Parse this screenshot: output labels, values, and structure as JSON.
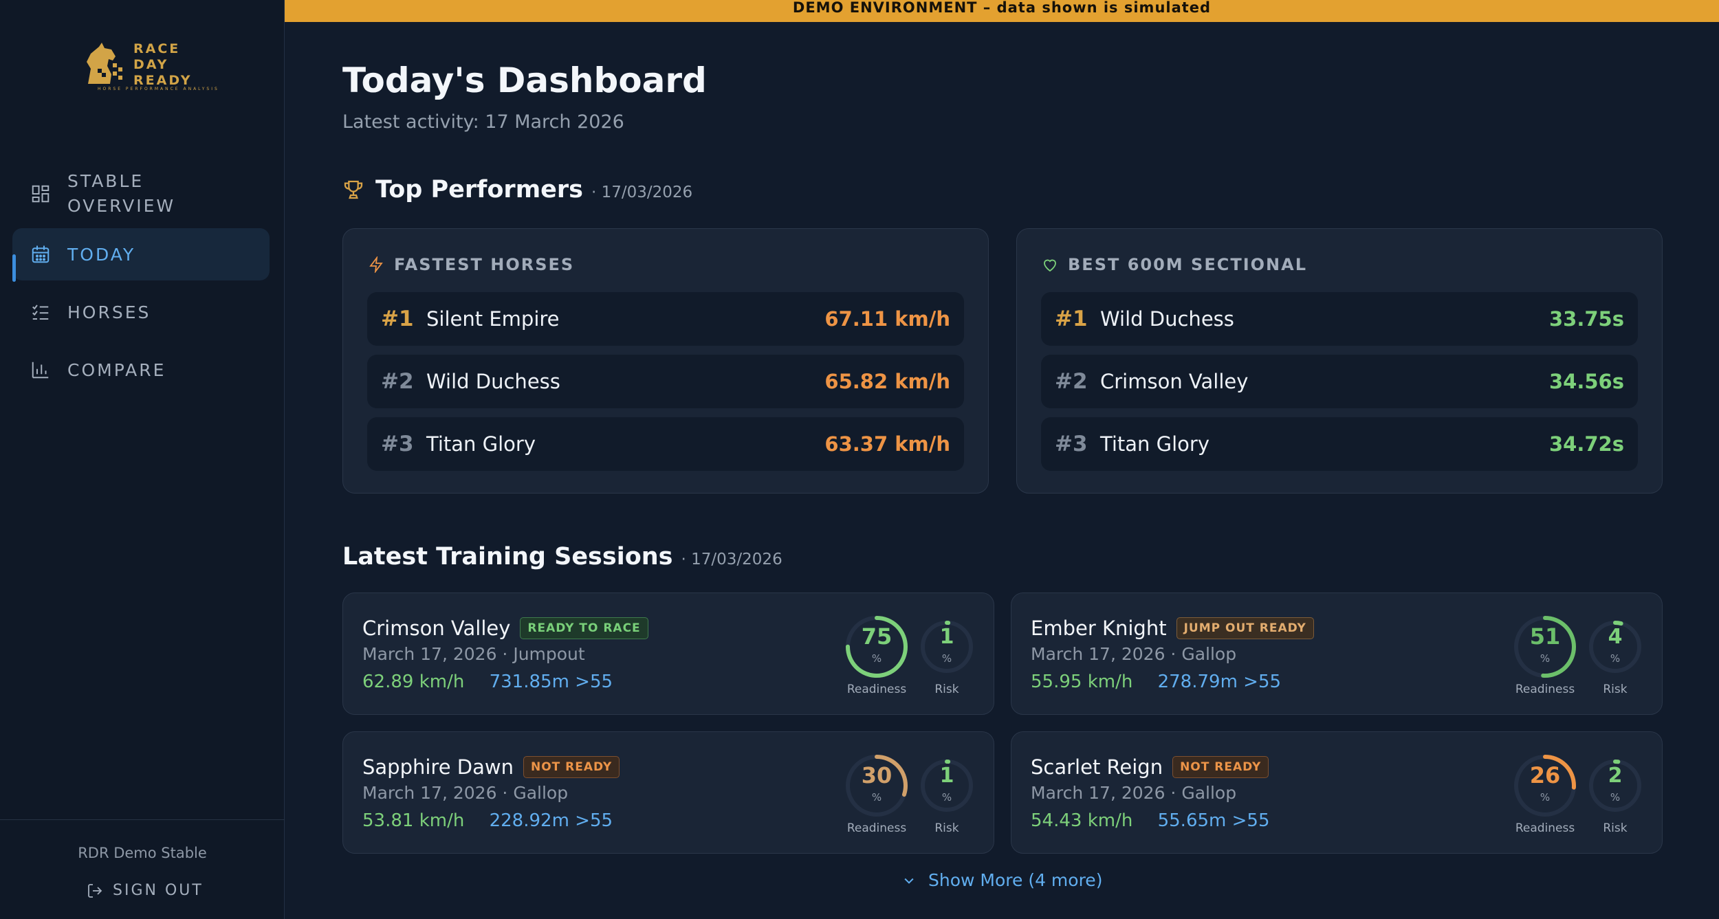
{
  "banner": "DEMO ENVIRONMENT – data shown is simulated",
  "logo": {
    "line1": "RACE",
    "line2": "DAY",
    "line3": "READY",
    "tagline": "HORSE  PERFORMANCE  ANALYSIS"
  },
  "nav": {
    "stable_overview": "STABLE OVERVIEW",
    "today": "TODAY",
    "horses": "HORSES",
    "compare": "COMPARE"
  },
  "footer": {
    "stable_name": "RDR Demo Stable",
    "sign_out": "SIGN OUT"
  },
  "header": {
    "title": "Today's Dashboard",
    "subtitle": "Latest activity: 17 March 2026"
  },
  "top_performers": {
    "title": "Top Performers",
    "date": "· 17/03/2026",
    "fastest": {
      "heading": "FASTEST HORSES",
      "rows": [
        {
          "rank": "#1",
          "name": "Silent Empire",
          "value": "67.11 km/h"
        },
        {
          "rank": "#2",
          "name": "Wild Duchess",
          "value": "65.82 km/h"
        },
        {
          "rank": "#3",
          "name": "Titan Glory",
          "value": "63.37 km/h"
        }
      ]
    },
    "sectional": {
      "heading": "BEST 600M SECTIONAL",
      "rows": [
        {
          "rank": "#1",
          "name": "Wild Duchess",
          "value": "33.75s"
        },
        {
          "rank": "#2",
          "name": "Crimson Valley",
          "value": "34.56s"
        },
        {
          "rank": "#3",
          "name": "Titan Glory",
          "value": "34.72s"
        }
      ]
    }
  },
  "sessions": {
    "title": "Latest Training Sessions",
    "date": "· 17/03/2026",
    "readiness_label": "Readiness",
    "risk_label": "Risk",
    "pct": "%",
    "items": [
      {
        "name": "Crimson Valley",
        "badge": "READY TO RACE",
        "meta": "March 17, 2026 · Jumpout",
        "speed": "62.89 km/h",
        "distance": "731.85m >55",
        "readiness": "75",
        "risk": "1"
      },
      {
        "name": "Ember Knight",
        "badge": "JUMP OUT READY",
        "meta": "March 17, 2026 · Gallop",
        "speed": "55.95 km/h",
        "distance": "278.79m >55",
        "readiness": "51",
        "risk": "4"
      },
      {
        "name": "Sapphire Dawn",
        "badge": "NOT READY",
        "meta": "March 17, 2026 · Gallop",
        "speed": "53.81 km/h",
        "distance": "228.92m >55",
        "readiness": "30",
        "risk": "1"
      },
      {
        "name": "Scarlet Reign",
        "badge": "NOT READY",
        "meta": "March 17, 2026 · Gallop",
        "speed": "54.43 km/h",
        "distance": "55.65m >55",
        "readiness": "26",
        "risk": "2"
      }
    ],
    "show_more": "Show More (4 more)"
  },
  "colors": {
    "accent": "#61aeef",
    "gold": "#d9a347",
    "green": "#7dd07a",
    "orange": "#ee9445",
    "banner": "#e3a130"
  }
}
